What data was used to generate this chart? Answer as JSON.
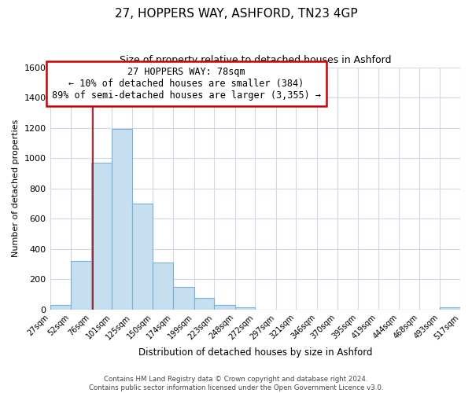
{
  "title": "27, HOPPERS WAY, ASHFORD, TN23 4GP",
  "subtitle": "Size of property relative to detached houses in Ashford",
  "xlabel": "Distribution of detached houses by size in Ashford",
  "ylabel": "Number of detached properties",
  "bar_edges": [
    27,
    52,
    76,
    101,
    125,
    150,
    174,
    199,
    223,
    248,
    272,
    297,
    321,
    346,
    370,
    395,
    419,
    444,
    468,
    493,
    517
  ],
  "bar_heights": [
    30,
    320,
    970,
    1195,
    700,
    310,
    150,
    75,
    30,
    15,
    0,
    0,
    0,
    0,
    0,
    0,
    0,
    0,
    0,
    15
  ],
  "bar_color": "#c6dff0",
  "bar_edge_color": "#7ab0d4",
  "vline_x": 78,
  "vline_color": "#aa0000",
  "annotation_line1": "27 HOPPERS WAY: 78sqm",
  "annotation_line2": "← 10% of detached houses are smaller (384)",
  "annotation_line3": "89% of semi-detached houses are larger (3,355) →",
  "annotation_box_color": "#ffffff",
  "annotation_box_edge_color": "#cc0000",
  "ylim": [
    0,
    1600
  ],
  "yticks": [
    0,
    200,
    400,
    600,
    800,
    1000,
    1200,
    1400,
    1600
  ],
  "tick_labels": [
    "27sqm",
    "52sqm",
    "76sqm",
    "101sqm",
    "125sqm",
    "150sqm",
    "174sqm",
    "199sqm",
    "223sqm",
    "248sqm",
    "272sqm",
    "297sqm",
    "321sqm",
    "346sqm",
    "370sqm",
    "395sqm",
    "419sqm",
    "444sqm",
    "468sqm",
    "493sqm",
    "517sqm"
  ],
  "footer_line1": "Contains HM Land Registry data © Crown copyright and database right 2024.",
  "footer_line2": "Contains public sector information licensed under the Open Government Licence v3.0.",
  "background_color": "#ffffff",
  "grid_color": "#d0d8e8"
}
